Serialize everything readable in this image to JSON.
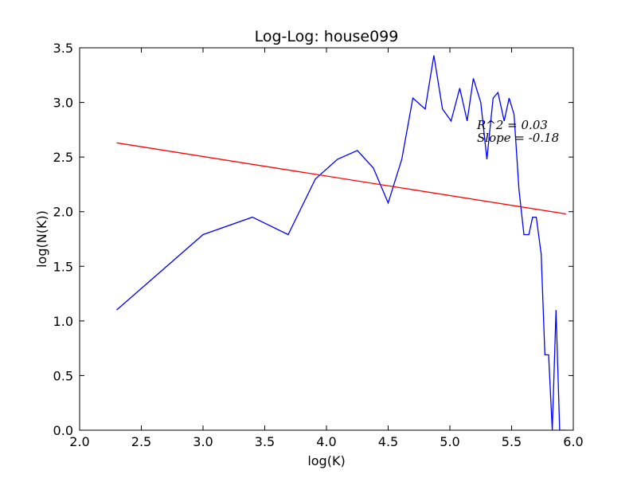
{
  "chart_data": {
    "type": "line",
    "title": "Log-Log: house099",
    "xlabel": "log(K)",
    "ylabel": "log(N(K))",
    "xlim": [
      2.0,
      6.0
    ],
    "ylim": [
      0.0,
      3.5
    ],
    "xticks": [
      "2.0",
      "2.5",
      "3.0",
      "3.5",
      "4.0",
      "4.5",
      "5.0",
      "5.5",
      "6.0"
    ],
    "yticks": [
      "0.0",
      "0.5",
      "1.0",
      "1.5",
      "2.0",
      "2.5",
      "3.0",
      "3.5"
    ],
    "grid": false,
    "series": [
      {
        "color": "#0000ff",
        "x": [
          2.3,
          3.0,
          3.4,
          3.69,
          3.91,
          4.09,
          4.25,
          4.38,
          4.5,
          4.61,
          4.7,
          4.8,
          4.87,
          4.94,
          5.01,
          5.08,
          5.14,
          5.19,
          5.25,
          5.3,
          5.35,
          5.39,
          5.44,
          5.48,
          5.52,
          5.56,
          5.6,
          5.64,
          5.67,
          5.7,
          5.74,
          5.77,
          5.8,
          5.83,
          5.86,
          5.89,
          5.92,
          5.94
        ],
        "y": [
          1.1,
          1.79,
          1.95,
          1.79,
          2.3,
          2.48,
          2.56,
          2.4,
          2.08,
          2.48,
          3.04,
          2.94,
          3.43,
          2.94,
          2.83,
          3.13,
          2.83,
          3.22,
          3.0,
          2.48,
          3.04,
          3.09,
          2.83,
          3.04,
          2.89,
          2.2,
          1.79,
          1.79,
          1.95,
          1.95,
          1.61,
          0.69,
          0.69,
          0.0,
          1.1,
          0.0,
          0.0,
          0.0
        ]
      },
      {
        "color": "#ff0000",
        "x": [
          2.3,
          5.94
        ],
        "y": [
          2.63,
          1.98
        ]
      }
    ],
    "annotations": [
      "R^2 = 0.03",
      "Slope = -0.18"
    ]
  }
}
